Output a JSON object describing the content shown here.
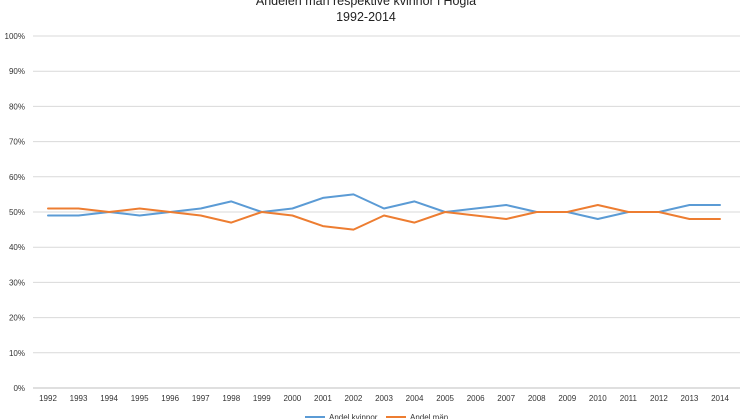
{
  "chart_data": {
    "type": "line",
    "title": "Andelen män respektive kvinnor i Högla",
    "subtitle": "1992-2014",
    "categories": [
      "1992",
      "1993",
      "1994",
      "1995",
      "1996",
      "1997",
      "1998",
      "1999",
      "2000",
      "2001",
      "2002",
      "2003",
      "2004",
      "2005",
      "2006",
      "2007",
      "2008",
      "2009",
      "2010",
      "2011",
      "2012",
      "2013",
      "2014"
    ],
    "series": [
      {
        "name": "Andel kvinnor",
        "color": "#5b9bd5",
        "values": [
          49,
          49,
          50,
          49,
          50,
          51,
          53,
          50,
          51,
          54,
          55,
          51,
          53,
          50,
          51,
          52,
          50,
          50,
          48,
          50,
          50,
          52,
          52
        ]
      },
      {
        "name": "Andel män",
        "color": "#ed7d31",
        "values": [
          51,
          51,
          50,
          51,
          50,
          49,
          47,
          50,
          49,
          46,
          45,
          49,
          47,
          50,
          49,
          48,
          50,
          50,
          52,
          50,
          50,
          48,
          48
        ]
      }
    ],
    "yticks": [
      "0%",
      "10%",
      "20%",
      "30%",
      "40%",
      "50%",
      "60%",
      "70%",
      "80%",
      "90%",
      "100%"
    ],
    "ylim": [
      0,
      100
    ],
    "grid": true,
    "legend_position": "bottom"
  }
}
